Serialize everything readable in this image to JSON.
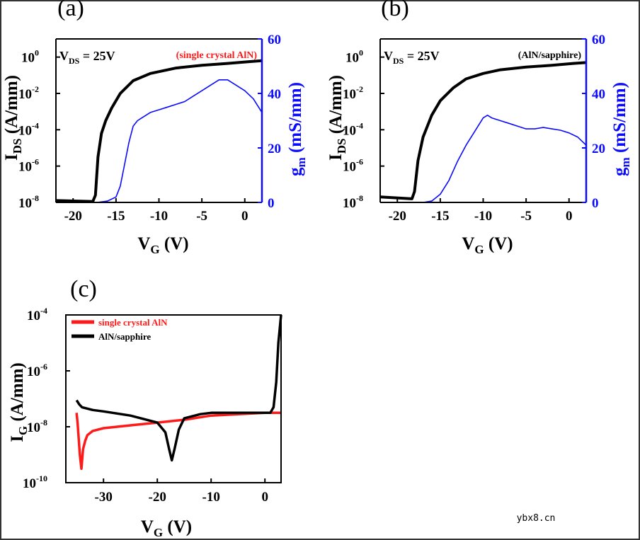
{
  "colors": {
    "black": "#000000",
    "blue": "#0a0aff",
    "red": "#ff1a1a",
    "border": "#333333"
  },
  "watermark": "ybx8.cn",
  "chart_data": [
    {
      "panel_label": "(a)",
      "type": "line",
      "annotation": "V",
      "annotation_sub": "DS",
      "annotation_rest": " = 25V",
      "tag": "(single crystal AlN)",
      "tag_color": "#ff1a1a",
      "xlabel_main": "V",
      "xlabel_sub": "G",
      "xlabel_rest": " (V)",
      "ylabel_main": "I",
      "ylabel_sub": "DS",
      "ylabel_rest": " (A/mm)",
      "y2label_main": "g",
      "y2label_sub": "m",
      "y2label_rest": " (mS/mm)",
      "xlim": [
        -22,
        2
      ],
      "xticks": [
        -20,
        -15,
        -10,
        -5,
        0
      ],
      "xtick_labels": [
        "-20",
        "-15",
        "-10",
        "-5",
        "0"
      ],
      "ylim_log": [
        -8,
        1
      ],
      "yticks_exp": [
        -8,
        -6,
        -4,
        -2,
        0
      ],
      "ytick_base": "10",
      "ytick_exps": [
        "-8",
        "-6",
        "-4",
        "-2",
        "0"
      ],
      "y2lim": [
        0,
        60
      ],
      "y2ticks": [
        0,
        20,
        40,
        60
      ],
      "y2tick_labels": [
        "0",
        "20",
        "40",
        "60"
      ],
      "series": [
        {
          "name": "IDS",
          "axis": "left",
          "color": "#000000",
          "x": [
            -22,
            -17.7,
            -17.4,
            -17.1,
            -16.7,
            -16.2,
            -15.5,
            -14.5,
            -13.0,
            -11.0,
            -8.0,
            -5.0,
            -2.0,
            0.5,
            2.0
          ],
          "y_log": [
            -7.9,
            -7.95,
            -7.6,
            -5.5,
            -4.2,
            -3.5,
            -2.8,
            -2.0,
            -1.3,
            -0.9,
            -0.6,
            -0.45,
            -0.35,
            -0.25,
            -0.2
          ]
        },
        {
          "name": "gm",
          "axis": "right",
          "color": "#0a0aff",
          "x": [
            -17.2,
            -16.0,
            -15.0,
            -14.5,
            -14.0,
            -13.5,
            -13.0,
            -12.5,
            -12.0,
            -11.0,
            -10.0,
            -9.0,
            -8.0,
            -7.0,
            -6.0,
            -5.0,
            -4.0,
            -3.0,
            -2.0,
            -1.0,
            0.0,
            1.0,
            2.0
          ],
          "y": [
            0,
            0.5,
            2,
            6,
            14,
            22,
            28,
            30,
            31,
            33,
            34,
            35,
            36,
            37,
            39,
            41,
            43,
            45,
            45,
            43,
            41,
            38,
            33
          ]
        }
      ]
    },
    {
      "panel_label": "(b)",
      "type": "line",
      "annotation": "V",
      "annotation_sub": "DS",
      "annotation_rest": " = 25V",
      "tag": "(AlN/sapphire)",
      "tag_color": "#000000",
      "xlabel_main": "V",
      "xlabel_sub": "G",
      "xlabel_rest": " (V)",
      "ylabel_main": "I",
      "ylabel_sub": "DS",
      "ylabel_rest": " (A/mm)",
      "y2label_main": "g",
      "y2label_sub": "m",
      "y2label_rest": " (mS/mm)",
      "xlim": [
        -22,
        2
      ],
      "xticks": [
        -20,
        -15,
        -10,
        -5,
        0
      ],
      "xtick_labels": [
        "-20",
        "-15",
        "-10",
        "-5",
        "0"
      ],
      "ylim_log": [
        -8,
        1
      ],
      "yticks_exp": [
        -8,
        -6,
        -4,
        -2,
        0
      ],
      "ytick_base": "10",
      "ytick_exps": [
        "-8",
        "-6",
        "-4",
        "-2",
        "0"
      ],
      "y2lim": [
        0,
        60
      ],
      "y2ticks": [
        0,
        20,
        40,
        60
      ],
      "y2tick_labels": [
        "0",
        "20",
        "40",
        "60"
      ],
      "series": [
        {
          "name": "IDS",
          "axis": "left",
          "color": "#000000",
          "x": [
            -22,
            -18.3,
            -18.0,
            -17.6,
            -17.0,
            -16.0,
            -15.0,
            -13.5,
            -12.0,
            -10.0,
            -8.0,
            -5.0,
            -2.0,
            0.5,
            2.0
          ],
          "y_log": [
            -7.7,
            -7.8,
            -7.4,
            -5.7,
            -4.4,
            -3.2,
            -2.4,
            -1.7,
            -1.2,
            -0.9,
            -0.7,
            -0.55,
            -0.45,
            -0.35,
            -0.3
          ]
        },
        {
          "name": "gm",
          "axis": "right",
          "color": "#0a0aff",
          "x": [
            -17.0,
            -16.0,
            -15.0,
            -14.0,
            -13.0,
            -12.0,
            -11.0,
            -10.0,
            -9.5,
            -9.0,
            -8.0,
            -7.0,
            -6.0,
            -5.0,
            -4.0,
            -3.0,
            -2.0,
            -1.0,
            0.0,
            1.0,
            2.0
          ],
          "y": [
            0,
            0.5,
            3,
            8,
            15,
            21,
            26,
            31,
            32,
            31,
            30,
            29,
            28,
            27,
            27,
            27.5,
            27,
            26.5,
            25.5,
            24,
            21
          ]
        }
      ]
    },
    {
      "panel_label": "(c)",
      "type": "line",
      "xlabel_main": "V",
      "xlabel_sub": "G",
      "xlabel_rest": " (V)",
      "ylabel_main": "I",
      "ylabel_sub": "G",
      "ylabel_rest": " (A/mm)",
      "xlim": [
        -37,
        3
      ],
      "xticks": [
        -30,
        -20,
        -10,
        0
      ],
      "xtick_labels": [
        "-30",
        "-20",
        "-10",
        "0"
      ],
      "ylim_log": [
        -10,
        -4
      ],
      "yticks_exp": [
        -10,
        -8,
        -6,
        -4
      ],
      "ytick_base": "10",
      "ytick_exps": [
        "-10",
        "-8",
        "-6",
        "-4"
      ],
      "legend": [
        {
          "label": "single crystal AlN",
          "color": "#ff1a1a"
        },
        {
          "label": "AlN/sapphire",
          "color": "#000000"
        }
      ],
      "series": [
        {
          "name": "single crystal AlN",
          "color": "#ff1a1a",
          "x": [
            -35.0,
            -34.8,
            -34.4,
            -34.1,
            -33.8,
            -33.4,
            -33.0,
            -32.0,
            -30.0,
            -25.0,
            -20.0,
            -15.0,
            -10.0,
            -5.0,
            0.0,
            3.0
          ],
          "y_log": [
            -7.5,
            -7.9,
            -9.0,
            -9.5,
            -8.8,
            -8.5,
            -8.3,
            -8.15,
            -8.05,
            -7.95,
            -7.85,
            -7.75,
            -7.6,
            -7.55,
            -7.5,
            -7.5
          ]
        },
        {
          "name": "AlN/sapphire",
          "color": "#000000",
          "x": [
            -35.0,
            -34.5,
            -34.0,
            -32.0,
            -30.0,
            -25.0,
            -20.0,
            -18.5,
            -17.8,
            -17.3,
            -16.8,
            -16.0,
            -15.0,
            -12.0,
            -10.0,
            -5.0,
            0.0,
            1.0,
            1.6,
            2.1,
            2.5,
            3.0
          ],
          "y_log": [
            -7.05,
            -7.2,
            -7.3,
            -7.4,
            -7.45,
            -7.6,
            -7.85,
            -8.2,
            -8.8,
            -9.2,
            -8.8,
            -8.1,
            -7.7,
            -7.55,
            -7.5,
            -7.5,
            -7.5,
            -7.5,
            -7.3,
            -6.4,
            -5.0,
            -4.0
          ]
        }
      ]
    }
  ]
}
